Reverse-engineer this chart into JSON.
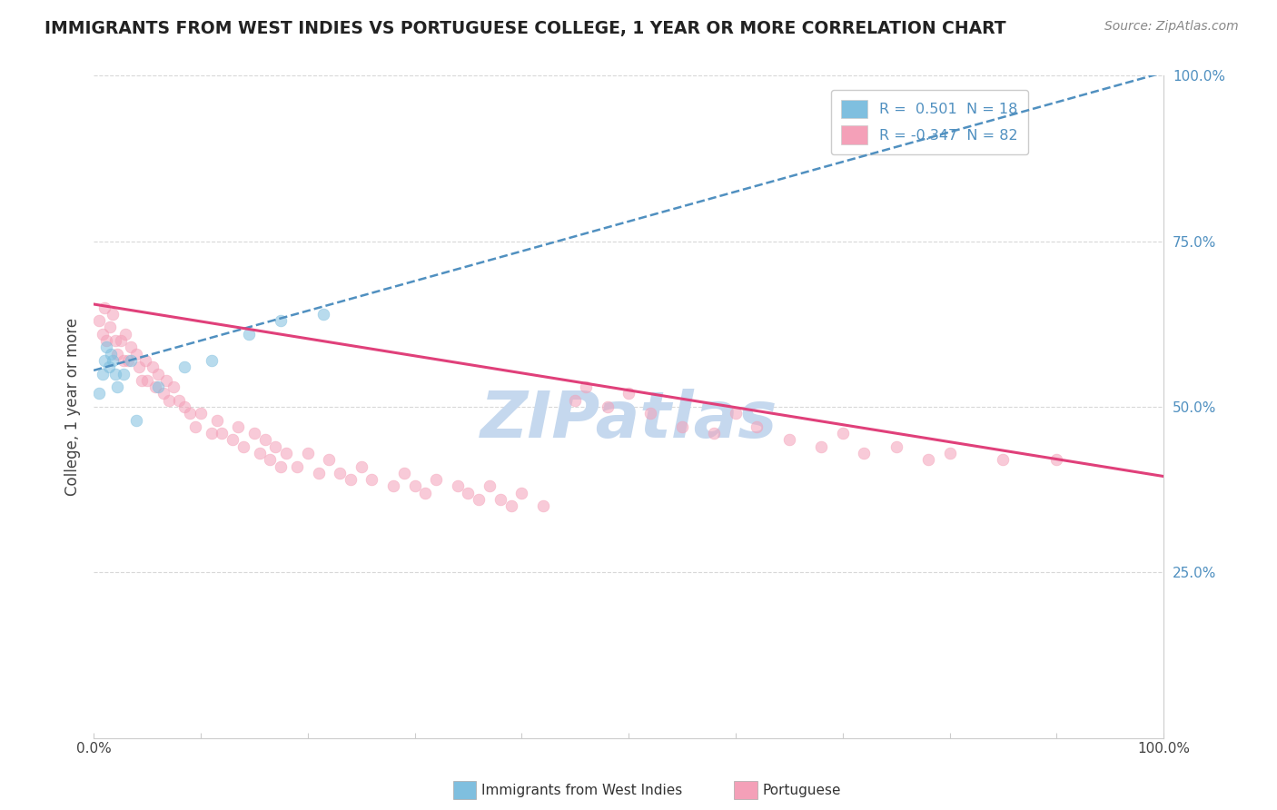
{
  "title": "IMMIGRANTS FROM WEST INDIES VS PORTUGUESE COLLEGE, 1 YEAR OR MORE CORRELATION CHART",
  "source_text": "Source: ZipAtlas.com",
  "ylabel": "College, 1 year or more",
  "xlim": [
    0.0,
    1.0
  ],
  "ylim": [
    0.0,
    1.0
  ],
  "ytick_positions": [
    0.25,
    0.5,
    0.75,
    1.0
  ],
  "ytick_labels": [
    "25.0%",
    "50.0%",
    "75.0%",
    "100.0%"
  ],
  "xtick_positions": [
    0.0,
    0.1,
    0.2,
    0.3,
    0.4,
    0.5,
    0.6,
    0.7,
    0.8,
    0.9,
    1.0
  ],
  "xtick_labels": [
    "0.0%",
    "",
    "",
    "",
    "",
    "",
    "",
    "",
    "",
    "",
    "100.0%"
  ],
  "blue_scatter_x": [
    0.005,
    0.008,
    0.01,
    0.012,
    0.014,
    0.016,
    0.018,
    0.02,
    0.022,
    0.028,
    0.035,
    0.04,
    0.06,
    0.085,
    0.11,
    0.145,
    0.175,
    0.215
  ],
  "blue_scatter_y": [
    0.52,
    0.55,
    0.57,
    0.59,
    0.56,
    0.58,
    0.57,
    0.55,
    0.53,
    0.55,
    0.57,
    0.48,
    0.53,
    0.56,
    0.57,
    0.61,
    0.63,
    0.64
  ],
  "pink_scatter_x": [
    0.005,
    0.008,
    0.01,
    0.012,
    0.015,
    0.018,
    0.02,
    0.022,
    0.025,
    0.028,
    0.03,
    0.032,
    0.035,
    0.04,
    0.042,
    0.045,
    0.048,
    0.05,
    0.055,
    0.058,
    0.06,
    0.065,
    0.068,
    0.07,
    0.075,
    0.08,
    0.085,
    0.09,
    0.095,
    0.1,
    0.11,
    0.115,
    0.12,
    0.13,
    0.135,
    0.14,
    0.15,
    0.155,
    0.16,
    0.165,
    0.17,
    0.175,
    0.18,
    0.19,
    0.2,
    0.21,
    0.22,
    0.23,
    0.24,
    0.25,
    0.26,
    0.28,
    0.29,
    0.3,
    0.31,
    0.32,
    0.34,
    0.35,
    0.36,
    0.37,
    0.38,
    0.39,
    0.4,
    0.42,
    0.45,
    0.46,
    0.48,
    0.5,
    0.52,
    0.55,
    0.58,
    0.6,
    0.62,
    0.65,
    0.68,
    0.7,
    0.72,
    0.75,
    0.78,
    0.8,
    0.85,
    0.9
  ],
  "pink_scatter_y": [
    0.63,
    0.61,
    0.65,
    0.6,
    0.62,
    0.64,
    0.6,
    0.58,
    0.6,
    0.57,
    0.61,
    0.57,
    0.59,
    0.58,
    0.56,
    0.54,
    0.57,
    0.54,
    0.56,
    0.53,
    0.55,
    0.52,
    0.54,
    0.51,
    0.53,
    0.51,
    0.5,
    0.49,
    0.47,
    0.49,
    0.46,
    0.48,
    0.46,
    0.45,
    0.47,
    0.44,
    0.46,
    0.43,
    0.45,
    0.42,
    0.44,
    0.41,
    0.43,
    0.41,
    0.43,
    0.4,
    0.42,
    0.4,
    0.39,
    0.41,
    0.39,
    0.38,
    0.4,
    0.38,
    0.37,
    0.39,
    0.38,
    0.37,
    0.36,
    0.38,
    0.36,
    0.35,
    0.37,
    0.35,
    0.51,
    0.53,
    0.5,
    0.52,
    0.49,
    0.47,
    0.46,
    0.49,
    0.47,
    0.45,
    0.44,
    0.46,
    0.43,
    0.44,
    0.42,
    0.43,
    0.42,
    0.42
  ],
  "blue_line_x": [
    0.0,
    1.0
  ],
  "blue_line_y_start": 0.555,
  "blue_line_y_end": 1.005,
  "pink_line_x": [
    0.0,
    1.0
  ],
  "pink_line_y_start": 0.655,
  "pink_line_y_end": 0.395,
  "scatter_alpha": 0.55,
  "scatter_size": 85,
  "blue_color": "#7fbfdf",
  "pink_color": "#f4a0b8",
  "blue_line_color": "#5090c0",
  "pink_line_color": "#e0407a",
  "watermark": "ZIPatlas",
  "watermark_color": "#c5d8ee",
  "watermark_fontsize": 52,
  "background_color": "#ffffff",
  "grid_color": "#d8d8d8",
  "ytick_color": "#5090c0",
  "title_color": "#222222",
  "source_color": "#888888"
}
